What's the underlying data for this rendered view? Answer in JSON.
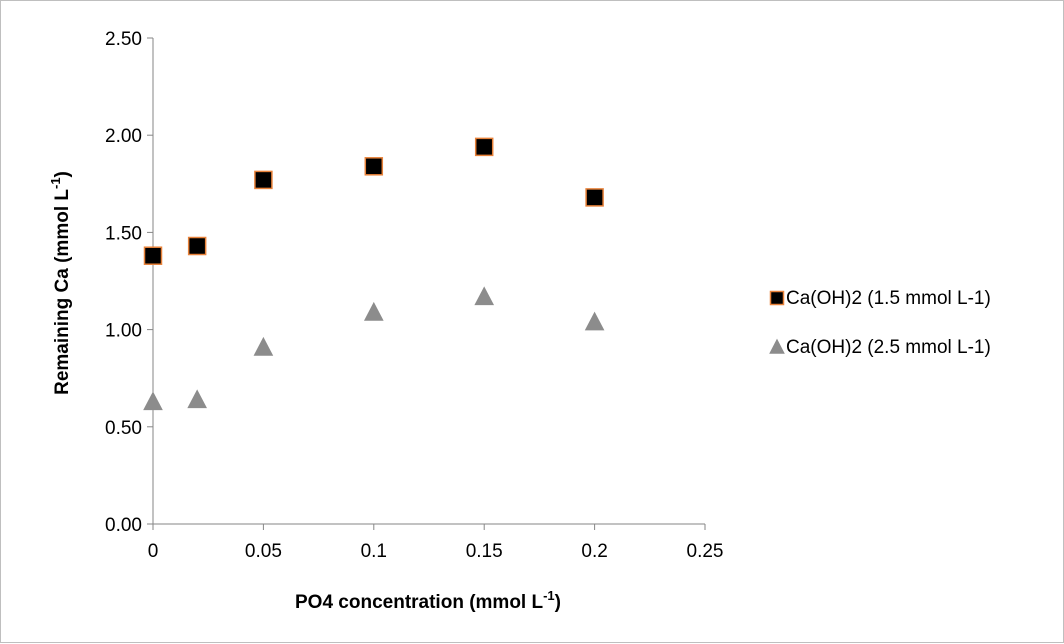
{
  "chart_data": {
    "type": "scatter",
    "title": "",
    "xlabel": {
      "main": "PO4 concentration (mmol L",
      "sup": "-1",
      "tail": ")"
    },
    "ylabel": {
      "main": "Remaining Ca (mmol L",
      "sup": "-1",
      "tail": ")"
    },
    "xlim": [
      0,
      0.25
    ],
    "ylim": [
      0,
      2.5
    ],
    "x_ticks": [
      0,
      0.05,
      0.1,
      0.15,
      0.2,
      0.25
    ],
    "x_tick_labels": [
      "0",
      "0.05",
      "0.1",
      "0.15",
      "0.2",
      "0.25"
    ],
    "y_ticks": [
      0,
      0.5,
      1.0,
      1.5,
      2.0,
      2.5
    ],
    "y_tick_labels": [
      "0.00",
      "0.50",
      "1.00",
      "1.50",
      "2.00",
      "2.50"
    ],
    "grid": false,
    "legend_position": "right",
    "series": [
      {
        "name": "Ca(OH)2 (1.5 mmol L-1)",
        "marker": "square",
        "fill": "#000000",
        "stroke": "#e8823a",
        "x": [
          0,
          0.02,
          0.05,
          0.1,
          0.15,
          0.2
        ],
        "y": [
          1.38,
          1.43,
          1.77,
          1.84,
          1.94,
          1.68
        ]
      },
      {
        "name": "Ca(OH)2 (2.5 mmol L-1)",
        "marker": "triangle",
        "fill": "#8c8c8c",
        "stroke": "#8c8c8c",
        "x": [
          0,
          0.02,
          0.05,
          0.1,
          0.15,
          0.2
        ],
        "y": [
          0.63,
          0.64,
          0.91,
          1.09,
          1.17,
          1.04
        ]
      }
    ]
  }
}
